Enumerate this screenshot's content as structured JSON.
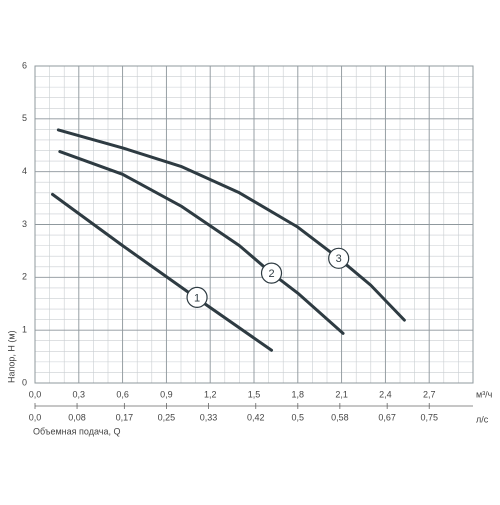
{
  "chart_data": {
    "type": "line",
    "y_label": "Напор, Н (м)",
    "x_unit": "м³/ч",
    "x2_unit": "л/с",
    "x2_label": "Объемная подача, Q",
    "xlim": [
      0,
      3
    ],
    "xticks": [
      {
        "value": 0,
        "label": "0,0"
      },
      {
        "value": 0.3,
        "label": "0,3"
      },
      {
        "value": 0.6,
        "label": "0,6"
      },
      {
        "value": 0.9,
        "label": "0,9"
      },
      {
        "value": 1.2,
        "label": "1,2"
      },
      {
        "value": 1.5,
        "label": "1,5"
      },
      {
        "value": 1.8,
        "label": "1,8"
      },
      {
        "value": 2.1,
        "label": "2,1"
      },
      {
        "value": 2.4,
        "label": "2,4"
      },
      {
        "value": 2.7,
        "label": "2,7"
      }
    ],
    "x2lim": [
      0,
      0.8333
    ],
    "x2ticks": [
      {
        "value": 0,
        "label": "0,0"
      },
      {
        "value": 0.08,
        "label": "0,08"
      },
      {
        "value": 0.17,
        "label": "0,17"
      },
      {
        "value": 0.25,
        "label": "0,25"
      },
      {
        "value": 0.33,
        "label": "0,33"
      },
      {
        "value": 0.42,
        "label": "0,42"
      },
      {
        "value": 0.5,
        "label": "0,5"
      },
      {
        "value": 0.58,
        "label": "0,58"
      },
      {
        "value": 0.67,
        "label": "0,67"
      },
      {
        "value": 0.75,
        "label": "0,75"
      }
    ],
    "ylim": [
      0,
      6
    ],
    "yticks": [
      0,
      1,
      2,
      3,
      4,
      5,
      6
    ],
    "grid": true,
    "series": [
      {
        "name": "1",
        "color": "#2e3b42",
        "label_point": [
          1.11,
          1.62
        ],
        "x": [
          0.12,
          0.6,
          1.1,
          1.62
        ],
        "values": [
          3.57,
          2.6,
          1.62,
          0.62
        ]
      },
      {
        "name": "2",
        "color": "#2e3b42",
        "label_point": [
          1.62,
          2.08
        ],
        "x": [
          0.17,
          0.6,
          1.0,
          1.4,
          1.62,
          1.8,
          2.11
        ],
        "values": [
          4.38,
          3.95,
          3.35,
          2.6,
          2.08,
          1.7,
          0.94
        ]
      },
      {
        "name": "3",
        "color": "#2e3b42",
        "label_point": [
          2.08,
          2.36
        ],
        "x": [
          0.16,
          0.6,
          1.0,
          1.4,
          1.8,
          2.08,
          2.3,
          2.53
        ],
        "values": [
          4.79,
          4.45,
          4.1,
          3.6,
          2.95,
          2.36,
          1.85,
          1.19
        ]
      }
    ]
  }
}
